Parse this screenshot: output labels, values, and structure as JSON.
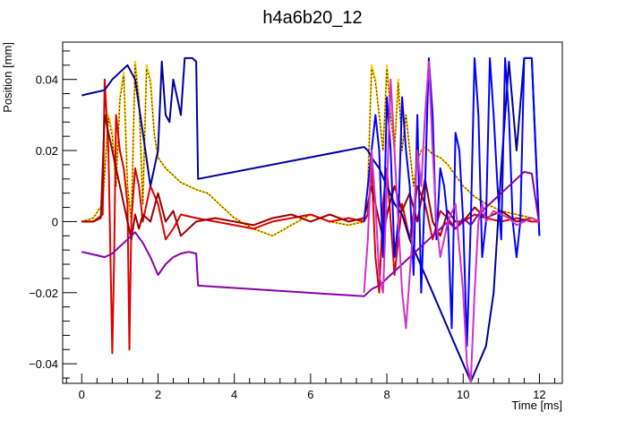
{
  "chart_data": {
    "type": "line",
    "title": "h4a6b20_12",
    "xlabel": "Time [ms]",
    "ylabel": "Position [mm]",
    "xlim": [
      -0.5,
      12.6
    ],
    "ylim": [
      -0.0455,
      0.0505
    ],
    "x_ticks": [
      0,
      2,
      4,
      6,
      8,
      10,
      12
    ],
    "x_tick_labels": [
      "0",
      "2",
      "4",
      "6",
      "8",
      "10",
      "12"
    ],
    "y_ticks": [
      -0.04,
      -0.02,
      0,
      0.02,
      0.04
    ],
    "y_tick_labels": [
      "−0.04",
      "−0.02",
      "0",
      "0.02",
      "0.04"
    ],
    "grid": false,
    "series": [
      {
        "color": "#ffcc00",
        "x": [
          0,
          0.3,
          0.55,
          0.7,
          0.8,
          0.9,
          1.0,
          1.1,
          1.2,
          1.3,
          1.4,
          1.5,
          1.6,
          1.7,
          1.8,
          1.9,
          2.0,
          2.2,
          2.4,
          2.6,
          2.8,
          3.0,
          3.3,
          3.6,
          4.0,
          4.5,
          5.0,
          5.5,
          6.0,
          6.5,
          7.0,
          7.4,
          7.5,
          7.6,
          7.7,
          7.8,
          7.9,
          8.0,
          8.1,
          8.2,
          8.3,
          8.4,
          8.5,
          8.6,
          8.7,
          8.8,
          8.9,
          9.0,
          9.1,
          9.2,
          9.4,
          9.6,
          9.8,
          10.0,
          10.3,
          10.6,
          11.0,
          11.4,
          11.8,
          12.0
        ],
        "y": [
          0.0,
          0.001,
          0.005,
          0.03,
          0.025,
          0.01,
          0.035,
          0.042,
          0.01,
          0.0,
          0.045,
          0.035,
          0.005,
          0.044,
          0.04,
          0.025,
          0.018,
          0.015,
          0.013,
          0.011,
          0.01,
          0.009,
          0.008,
          0.005,
          0.001,
          -0.002,
          -0.004,
          -0.001,
          0.002,
          0.0,
          -0.001,
          0.0,
          0.01,
          0.044,
          0.04,
          0.03,
          0.02,
          0.044,
          0.03,
          0.02,
          0.04,
          0.02,
          0.03,
          0.02,
          0.01,
          0.017,
          0.02,
          0.021,
          0.02,
          0.019,
          0.018,
          0.016,
          0.013,
          0.01,
          0.007,
          0.005,
          0.003,
          0.002,
          0.001,
          0.0
        ]
      },
      {
        "color": "#000000",
        "x": [
          0,
          0.3,
          0.55,
          0.7,
          0.8,
          0.9,
          1.0,
          1.1,
          1.2,
          1.3,
          1.4,
          1.5,
          1.6,
          1.7,
          1.8,
          1.9,
          2.0,
          2.2,
          2.4,
          2.6,
          2.8,
          3.0,
          3.3,
          3.6,
          4.0,
          4.5,
          5.0,
          5.5,
          6.0,
          6.5,
          7.0,
          7.4,
          7.5,
          7.6,
          7.7,
          7.8,
          7.9,
          8.0,
          8.1,
          8.2,
          8.3,
          8.4,
          8.5,
          8.6,
          8.7,
          8.8,
          8.9,
          9.0,
          9.1,
          9.2,
          9.4,
          9.6,
          9.8,
          10.0,
          10.3,
          10.6,
          11.0,
          11.4,
          11.8,
          12.0
        ],
        "y": [
          0.0,
          0.001,
          0.005,
          0.029,
          0.024,
          0.01,
          0.034,
          0.041,
          0.01,
          0.0,
          0.044,
          0.034,
          0.005,
          0.043,
          0.039,
          0.025,
          0.018,
          0.015,
          0.013,
          0.011,
          0.01,
          0.009,
          0.008,
          0.005,
          0.001,
          -0.002,
          -0.004,
          -0.001,
          0.002,
          0.0,
          -0.001,
          0.0,
          0.01,
          0.043,
          0.039,
          0.03,
          0.02,
          0.043,
          0.03,
          0.02,
          0.039,
          0.02,
          0.03,
          0.02,
          0.01,
          0.017,
          0.02,
          0.021,
          0.02,
          0.019,
          0.018,
          0.016,
          0.013,
          0.01,
          0.007,
          0.005,
          0.003,
          0.002,
          0.001,
          0.0
        ]
      },
      {
        "color": "#dd0000",
        "x": [
          0,
          0.3,
          0.55,
          0.6,
          0.7,
          0.8,
          0.85,
          0.9,
          1.0,
          1.1,
          1.2,
          1.25,
          1.3,
          1.4,
          1.5,
          1.6,
          1.7,
          1.8,
          2.0,
          2.2,
          2.4,
          2.6,
          3.0,
          3.5,
          4.0,
          4.5,
          5.0,
          5.5,
          6.0,
          6.5,
          7.0,
          7.4,
          7.5,
          7.6,
          7.7,
          7.8,
          7.9,
          8.0,
          8.2,
          8.4,
          8.6,
          8.8,
          9.0,
          9.2,
          9.4,
          9.6,
          9.8,
          10.0,
          10.3,
          10.6,
          11.0,
          11.4,
          11.8,
          12.0
        ],
        "y": [
          0.0,
          0.0,
          0.002,
          0.04,
          0.02,
          -0.037,
          -0.01,
          0.03,
          0.02,
          0.015,
          0.005,
          -0.036,
          0.0,
          0.015,
          0.01,
          0.0,
          0.005,
          0.01,
          0.005,
          -0.005,
          -0.002,
          0.002,
          0.001,
          0.0,
          -0.001,
          -0.002,
          0.0,
          0.001,
          0.002,
          0.0,
          0.001,
          0.0,
          0.002,
          0.015,
          -0.01,
          -0.02,
          0.005,
          0.015,
          -0.015,
          0.005,
          -0.005,
          0.01,
          0.005,
          -0.005,
          0.003,
          0.001,
          -0.002,
          0.0,
          0.002,
          0.001,
          0.0,
          0.001,
          0.0,
          0.0
        ]
      },
      {
        "color": "#990000",
        "x": [
          0,
          0.3,
          0.5,
          0.6,
          0.7,
          0.8,
          0.9,
          1.0,
          1.1,
          1.2,
          1.3,
          1.4,
          1.5,
          1.6,
          1.8,
          2.0,
          2.2,
          2.4,
          2.6,
          3.0,
          3.5,
          4.0,
          4.5,
          5.0,
          5.5,
          6.0,
          6.5,
          7.0,
          7.4,
          7.5,
          7.6,
          7.7,
          7.8,
          7.9,
          8.0,
          8.2,
          8.4,
          8.6,
          8.8,
          9.0,
          9.2,
          9.4,
          9.6,
          9.8,
          10.0,
          10.3,
          10.6,
          11.0,
          11.4,
          11.8,
          12.0
        ],
        "y": [
          0.0,
          0.0,
          0.001,
          0.03,
          0.025,
          0.02,
          0.015,
          0.01,
          0.005,
          0.0,
          -0.005,
          0.002,
          -0.002,
          0.002,
          0.0,
          0.008,
          0.0,
          0.003,
          -0.004,
          0.0,
          0.001,
          0.0,
          -0.001,
          0.001,
          0.002,
          0.0,
          0.002,
          0.0,
          0.001,
          0.005,
          0.01,
          0.005,
          0.0,
          -0.005,
          0.002,
          0.01,
          0.003,
          0.008,
          0.0,
          0.012,
          0.0,
          -0.004,
          0.003,
          0.0,
          0.0,
          0.004,
          0.001,
          0.003,
          0.0,
          0.001,
          0.0
        ]
      },
      {
        "color": "#000099",
        "x": [
          0,
          0.2,
          0.4,
          0.6,
          0.8,
          1.0,
          1.2,
          1.4,
          1.6,
          1.8,
          2.0,
          2.1,
          2.2,
          2.3,
          2.4,
          2.6,
          2.7,
          2.8,
          2.9,
          3.0,
          3.05,
          7.4,
          7.5,
          7.6,
          7.8,
          8.0,
          8.2,
          8.4,
          8.6,
          8.8,
          9.0,
          9.2,
          9.4,
          9.6,
          9.8,
          10.0,
          10.2,
          10.4,
          10.6,
          10.8,
          11.0,
          11.2,
          11.4,
          11.6,
          11.8,
          12.0
        ],
        "y": [
          0.0355,
          0.036,
          0.0365,
          0.037,
          0.04,
          0.042,
          0.044,
          0.04,
          0.025,
          0.01,
          0.02,
          0.045,
          0.03,
          0.028,
          0.04,
          0.03,
          0.046,
          0.046,
          0.046,
          0.045,
          0.012,
          0.021,
          0.02,
          0.018,
          0.015,
          0.01,
          0.005,
          0.002,
          -0.005,
          -0.01,
          -0.015,
          -0.02,
          -0.025,
          -0.03,
          -0.035,
          -0.04,
          -0.045,
          -0.04,
          -0.035,
          -0.02,
          0.015,
          0.045,
          0.02,
          0.046,
          0.046,
          -0.004
        ]
      },
      {
        "color": "#0000ff",
        "x": [
          7.4,
          7.5,
          7.6,
          7.7,
          7.8,
          7.9,
          8.0,
          8.1,
          8.2,
          8.3,
          8.4,
          8.5,
          8.6,
          8.7,
          8.8,
          8.9,
          9.0,
          9.1,
          9.2,
          9.3,
          9.4,
          9.5,
          9.6,
          9.7,
          9.8,
          9.9,
          10.0,
          10.1,
          10.2,
          10.3,
          10.4,
          10.5,
          10.6,
          10.7,
          10.8,
          10.9,
          11.0,
          11.1,
          11.2,
          11.3,
          11.4,
          11.5,
          11.6,
          11.7,
          11.8,
          11.9,
          12.0
        ],
        "y": [
          0.0,
          0.01,
          0.02,
          0.03,
          0.02,
          -0.01,
          0.035,
          0.02,
          -0.01,
          0.0,
          0.035,
          0.02,
          0.01,
          -0.015,
          0.03,
          -0.02,
          0.01,
          0.046,
          0.03,
          -0.005,
          0.015,
          0.01,
          0.0,
          -0.03,
          0.025,
          0.02,
          0.0,
          -0.035,
          0.0,
          0.046,
          0.03,
          -0.01,
          0.0,
          0.046,
          0.03,
          0.01,
          -0.005,
          0.046,
          0.03,
          0.0,
          -0.01,
          0.0,
          0.046,
          0.046,
          0.046,
          0.02,
          -0.004
        ]
      },
      {
        "color": "#8800aa",
        "x": [
          0,
          0.2,
          0.4,
          0.6,
          0.8,
          1.0,
          1.2,
          1.4,
          1.6,
          1.8,
          2.0,
          2.2,
          2.4,
          2.6,
          2.8,
          3.0,
          3.05,
          7.4,
          7.5,
          7.6,
          7.8,
          8.0,
          8.2,
          8.4,
          8.6,
          8.8,
          9.0,
          9.2,
          9.4,
          9.6,
          9.8,
          10.0,
          10.2,
          10.4,
          10.6,
          10.8,
          11.0,
          11.2,
          11.4,
          11.6,
          11.8,
          12.0
        ],
        "y": [
          -0.0085,
          -0.009,
          -0.0095,
          -0.01,
          -0.009,
          -0.007,
          -0.005,
          -0.003,
          -0.006,
          -0.01,
          -0.015,
          -0.012,
          -0.01,
          -0.009,
          -0.0085,
          -0.009,
          -0.018,
          -0.021,
          -0.02,
          -0.019,
          -0.018,
          -0.016,
          -0.014,
          -0.012,
          -0.01,
          -0.008,
          -0.006,
          -0.004,
          -0.002,
          0.0,
          -0.002,
          0.001,
          -0.001,
          0.002,
          0.004,
          0.006,
          0.008,
          0.01,
          0.012,
          0.014,
          0.0135,
          -0.001
        ]
      },
      {
        "color": "#cc33cc",
        "x": [
          7.4,
          7.5,
          7.6,
          7.7,
          7.8,
          7.9,
          8.0,
          8.1,
          8.2,
          8.3,
          8.4,
          8.5,
          8.6,
          8.7,
          8.8,
          8.9,
          9.0,
          9.1,
          9.2,
          9.3,
          9.4,
          9.6,
          9.8,
          10.0,
          10.1,
          10.2,
          10.3,
          10.4,
          10.5,
          10.6,
          10.8,
          11.0,
          11.2,
          11.4,
          11.6,
          11.8,
          12.0
        ],
        "y": [
          -0.02,
          -0.005,
          0.02,
          0.005,
          -0.015,
          -0.02,
          0.01,
          0.04,
          0.02,
          0.0,
          -0.02,
          -0.03,
          -0.015,
          0.0,
          0.02,
          0.01,
          0.03,
          0.045,
          0.02,
          0.0,
          -0.01,
          0.0,
          0.005,
          -0.02,
          -0.04,
          -0.045,
          -0.02,
          0.0,
          0.005,
          0.0,
          0.003,
          0.002,
          0.001,
          -0.001,
          0.0,
          0.001,
          0.0
        ]
      }
    ]
  }
}
